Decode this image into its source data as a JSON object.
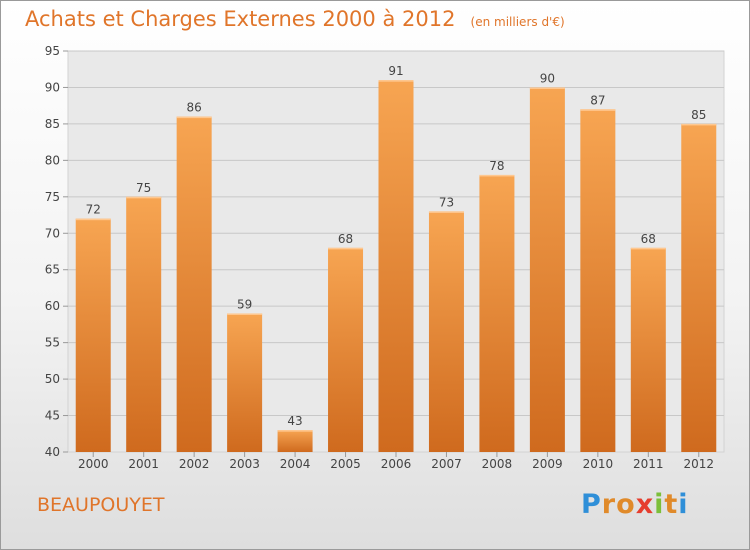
{
  "chart_data": {
    "type": "bar",
    "title": "Achats et Charges Externes 2000 à 2012",
    "subtitle": "(en milliers d'€)",
    "categories": [
      "2000",
      "2001",
      "2002",
      "2003",
      "2004",
      "2005",
      "2006",
      "2007",
      "2008",
      "2009",
      "2010",
      "2011",
      "2012"
    ],
    "values": [
      72,
      75,
      86,
      59,
      43,
      68,
      91,
      73,
      78,
      90,
      87,
      68,
      85
    ],
    "ylim": [
      40,
      95
    ],
    "yticks": [
      40,
      45,
      50,
      55,
      60,
      65,
      70,
      75,
      80,
      85,
      90,
      95
    ],
    "grid": true,
    "bar_color_top": "#f7a552",
    "bar_color_bottom": "#cf6a1e"
  },
  "commune": "BEAUPOUYET",
  "logo": {
    "letters": [
      "P",
      "r",
      "o",
      "x",
      "i",
      "t",
      "i"
    ],
    "colors": [
      "#2f8fd8",
      "#e08a2a",
      "#e08a2a",
      "#e63e2e",
      "#7cbf3a",
      "#e08a2a",
      "#2f8fd8"
    ]
  }
}
